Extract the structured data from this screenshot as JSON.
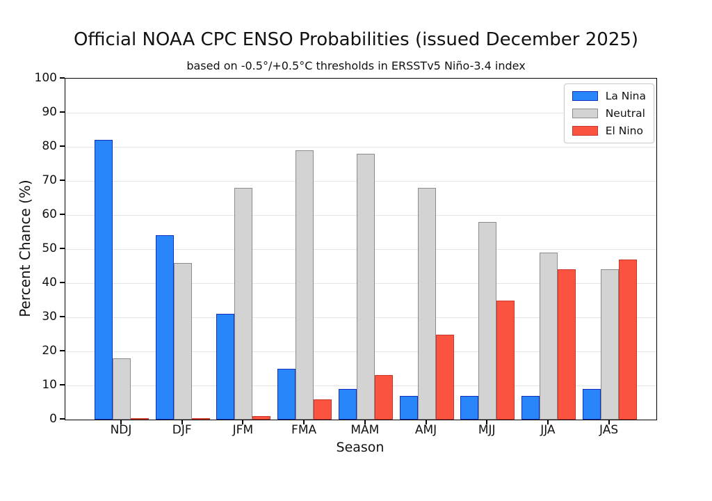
{
  "chart_data": {
    "type": "bar",
    "title": "Official NOAA CPC ENSO Probabilities (issued December 2025)",
    "subtitle": "based on -0.5°/+0.5°C thresholds in ERSSTv5 Niño-3.4 index",
    "xlabel": "Season",
    "ylabel": "Percent Chance (%)",
    "categories": [
      "NDJ",
      "DJF",
      "JFM",
      "FMA",
      "MAM",
      "AMJ",
      "MJJ",
      "JJA",
      "JAS"
    ],
    "series": [
      {
        "name": "La Nina",
        "color": "#2886FA",
        "edge_color": "#1130BE",
        "values": [
          82,
          54,
          31,
          15,
          9,
          7,
          7,
          7,
          9
        ]
      },
      {
        "name": "Neutral",
        "color": "#D3D3D3",
        "edge_color": "#8B8B8B",
        "values": [
          18,
          46,
          68,
          79,
          78,
          68,
          58,
          49,
          44
        ]
      },
      {
        "name": "El Nino",
        "color": "#FA5440",
        "edge_color": "#C83728",
        "values": [
          0,
          0,
          1,
          6,
          13,
          25,
          35,
          44,
          47
        ]
      }
    ],
    "ylim": [
      0,
      100
    ],
    "yticks": [
      0,
      10,
      20,
      30,
      40,
      50,
      60,
      70,
      80,
      90,
      100
    ],
    "grid": true,
    "legend_position": "upper right",
    "gridline_color": "#E4E4E4",
    "axis_color": "#000000"
  }
}
